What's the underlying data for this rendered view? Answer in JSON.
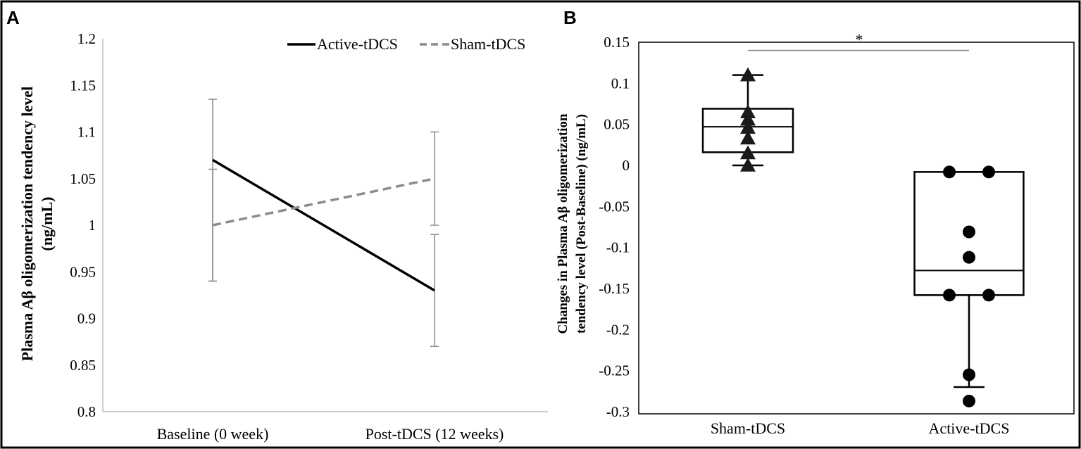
{
  "panel_labels": {
    "a": "A",
    "b": "B"
  },
  "chart_data": [
    {
      "type": "line",
      "panel": "A",
      "title": "",
      "xlabel": "",
      "ylabel_line1": "Plasma Aβ oligomerization tendency level",
      "ylabel_line2": "(ng/mL)",
      "ylim": [
        0.8,
        1.2
      ],
      "yticks": [
        0.8,
        0.85,
        0.9,
        0.95,
        1.0,
        1.05,
        1.1,
        1.15,
        1.2
      ],
      "ytick_labels": [
        "0.8",
        "0.85",
        "0.9",
        "0.95",
        "1",
        "1.05",
        "1.1",
        "1.15",
        "1.2"
      ],
      "categories": [
        "Baseline (0 week)",
        "Post-tDCS (12 weeks)"
      ],
      "legend_position": "top-right",
      "series": [
        {
          "name": "Active-tDCS",
          "style": "solid",
          "color": "#000000",
          "values": [
            1.07,
            0.93
          ],
          "err_low": [
            0.94,
            0.87
          ],
          "err_high": [
            1.135,
            0.99
          ]
        },
        {
          "name": "Sham-tDCS",
          "style": "dashed",
          "color": "#8c8c8c",
          "values": [
            1.0,
            1.05
          ],
          "err_low": [
            0.94,
            1.0
          ],
          "err_high": [
            1.06,
            1.1
          ]
        }
      ]
    },
    {
      "type": "box",
      "panel": "B",
      "title": "",
      "xlabel": "",
      "ylabel_line1": "Changes in Plasma Aβ oligomerization",
      "ylabel_line2": "tendency level (Post-Baseline) (ng/mL)",
      "ylim": [
        -0.3,
        0.15
      ],
      "yticks": [
        -0.3,
        -0.25,
        -0.2,
        -0.15,
        -0.1,
        -0.05,
        0,
        0.05,
        0.1,
        0.15
      ],
      "ytick_labels": [
        "-0.3",
        "-0.25",
        "-0.2",
        "-0.15",
        "-0.1",
        "-0.05",
        "0",
        "0.05",
        "0.1",
        "0.15"
      ],
      "categories": [
        "Sham-tDCS",
        "Active-tDCS"
      ],
      "significance": {
        "label": "*",
        "between": [
          "Sham-tDCS",
          "Active-tDCS"
        ],
        "level": 0.14
      },
      "groups": [
        {
          "name": "Sham-tDCS",
          "marker": "triangle",
          "whisker_low": 0.0,
          "q1": 0.016,
          "median": 0.047,
          "q3": 0.069,
          "whisker_high": 0.11,
          "points": [
            0.11,
            0.065,
            0.056,
            0.046,
            0.033,
            0.015,
            0.0
          ]
        },
        {
          "name": "Active-tDCS",
          "marker": "circle",
          "whisker_low": -0.27,
          "q1": -0.158,
          "median": -0.128,
          "q3": -0.008,
          "whisker_high": -0.008,
          "points": [
            -0.008,
            -0.008,
            -0.081,
            -0.112,
            -0.158,
            -0.158,
            -0.255,
            -0.287
          ]
        }
      ]
    }
  ]
}
